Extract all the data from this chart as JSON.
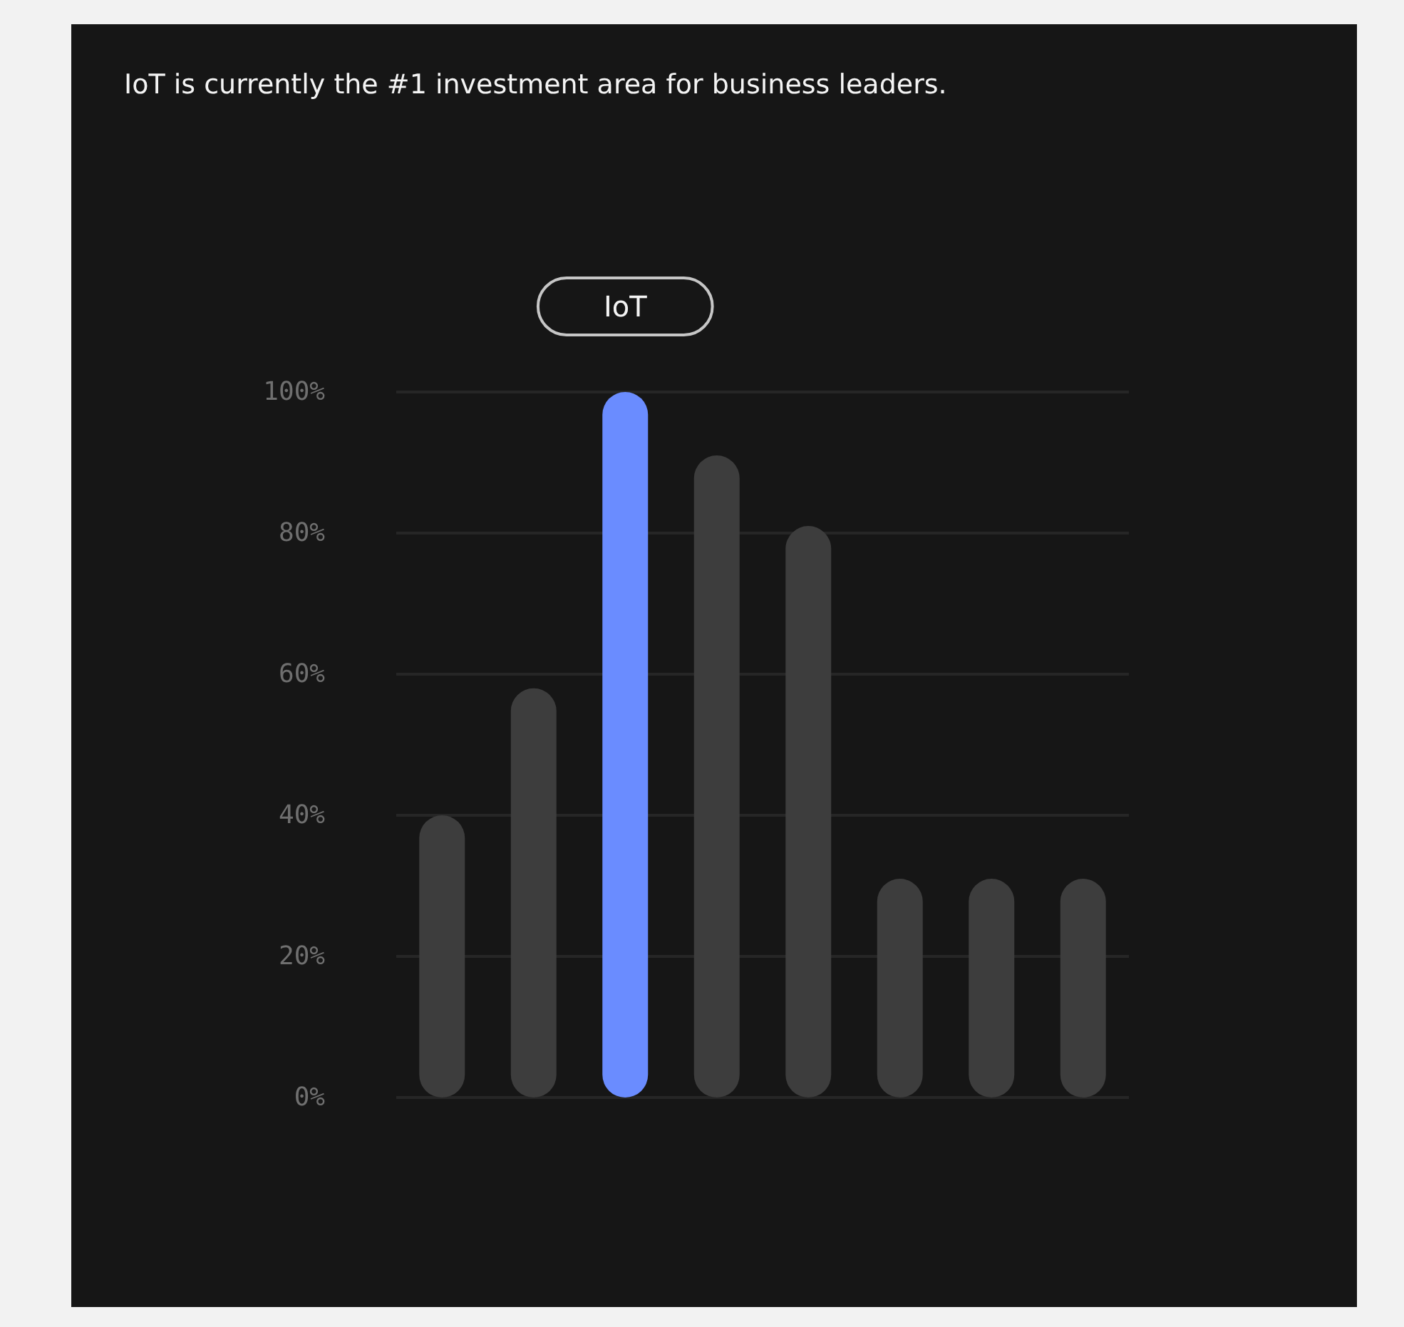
{
  "chart_data": {
    "type": "bar",
    "title": "IoT is currently the #1 investment area for business leaders.",
    "categories": [
      null,
      null,
      "IoT",
      null,
      null,
      null,
      null,
      null
    ],
    "values": [
      40,
      58,
      100,
      91,
      81,
      31,
      31,
      31
    ],
    "colors": [
      "#3d3d3d",
      "#3d3d3d",
      "#6a8cff",
      "#3d3d3d",
      "#3d3d3d",
      "#3d3d3d",
      "#3d3d3d",
      "#3d3d3d"
    ],
    "ylim": [
      0,
      100
    ],
    "yticks": [
      {
        "value": 0,
        "label": "0%"
      },
      {
        "value": 20,
        "label": "20%"
      },
      {
        "value": 40,
        "label": "40%"
      },
      {
        "value": 60,
        "label": "60%"
      },
      {
        "value": 80,
        "label": "80%"
      },
      {
        "value": 100,
        "label": "100%"
      }
    ],
    "grid": "y"
  }
}
